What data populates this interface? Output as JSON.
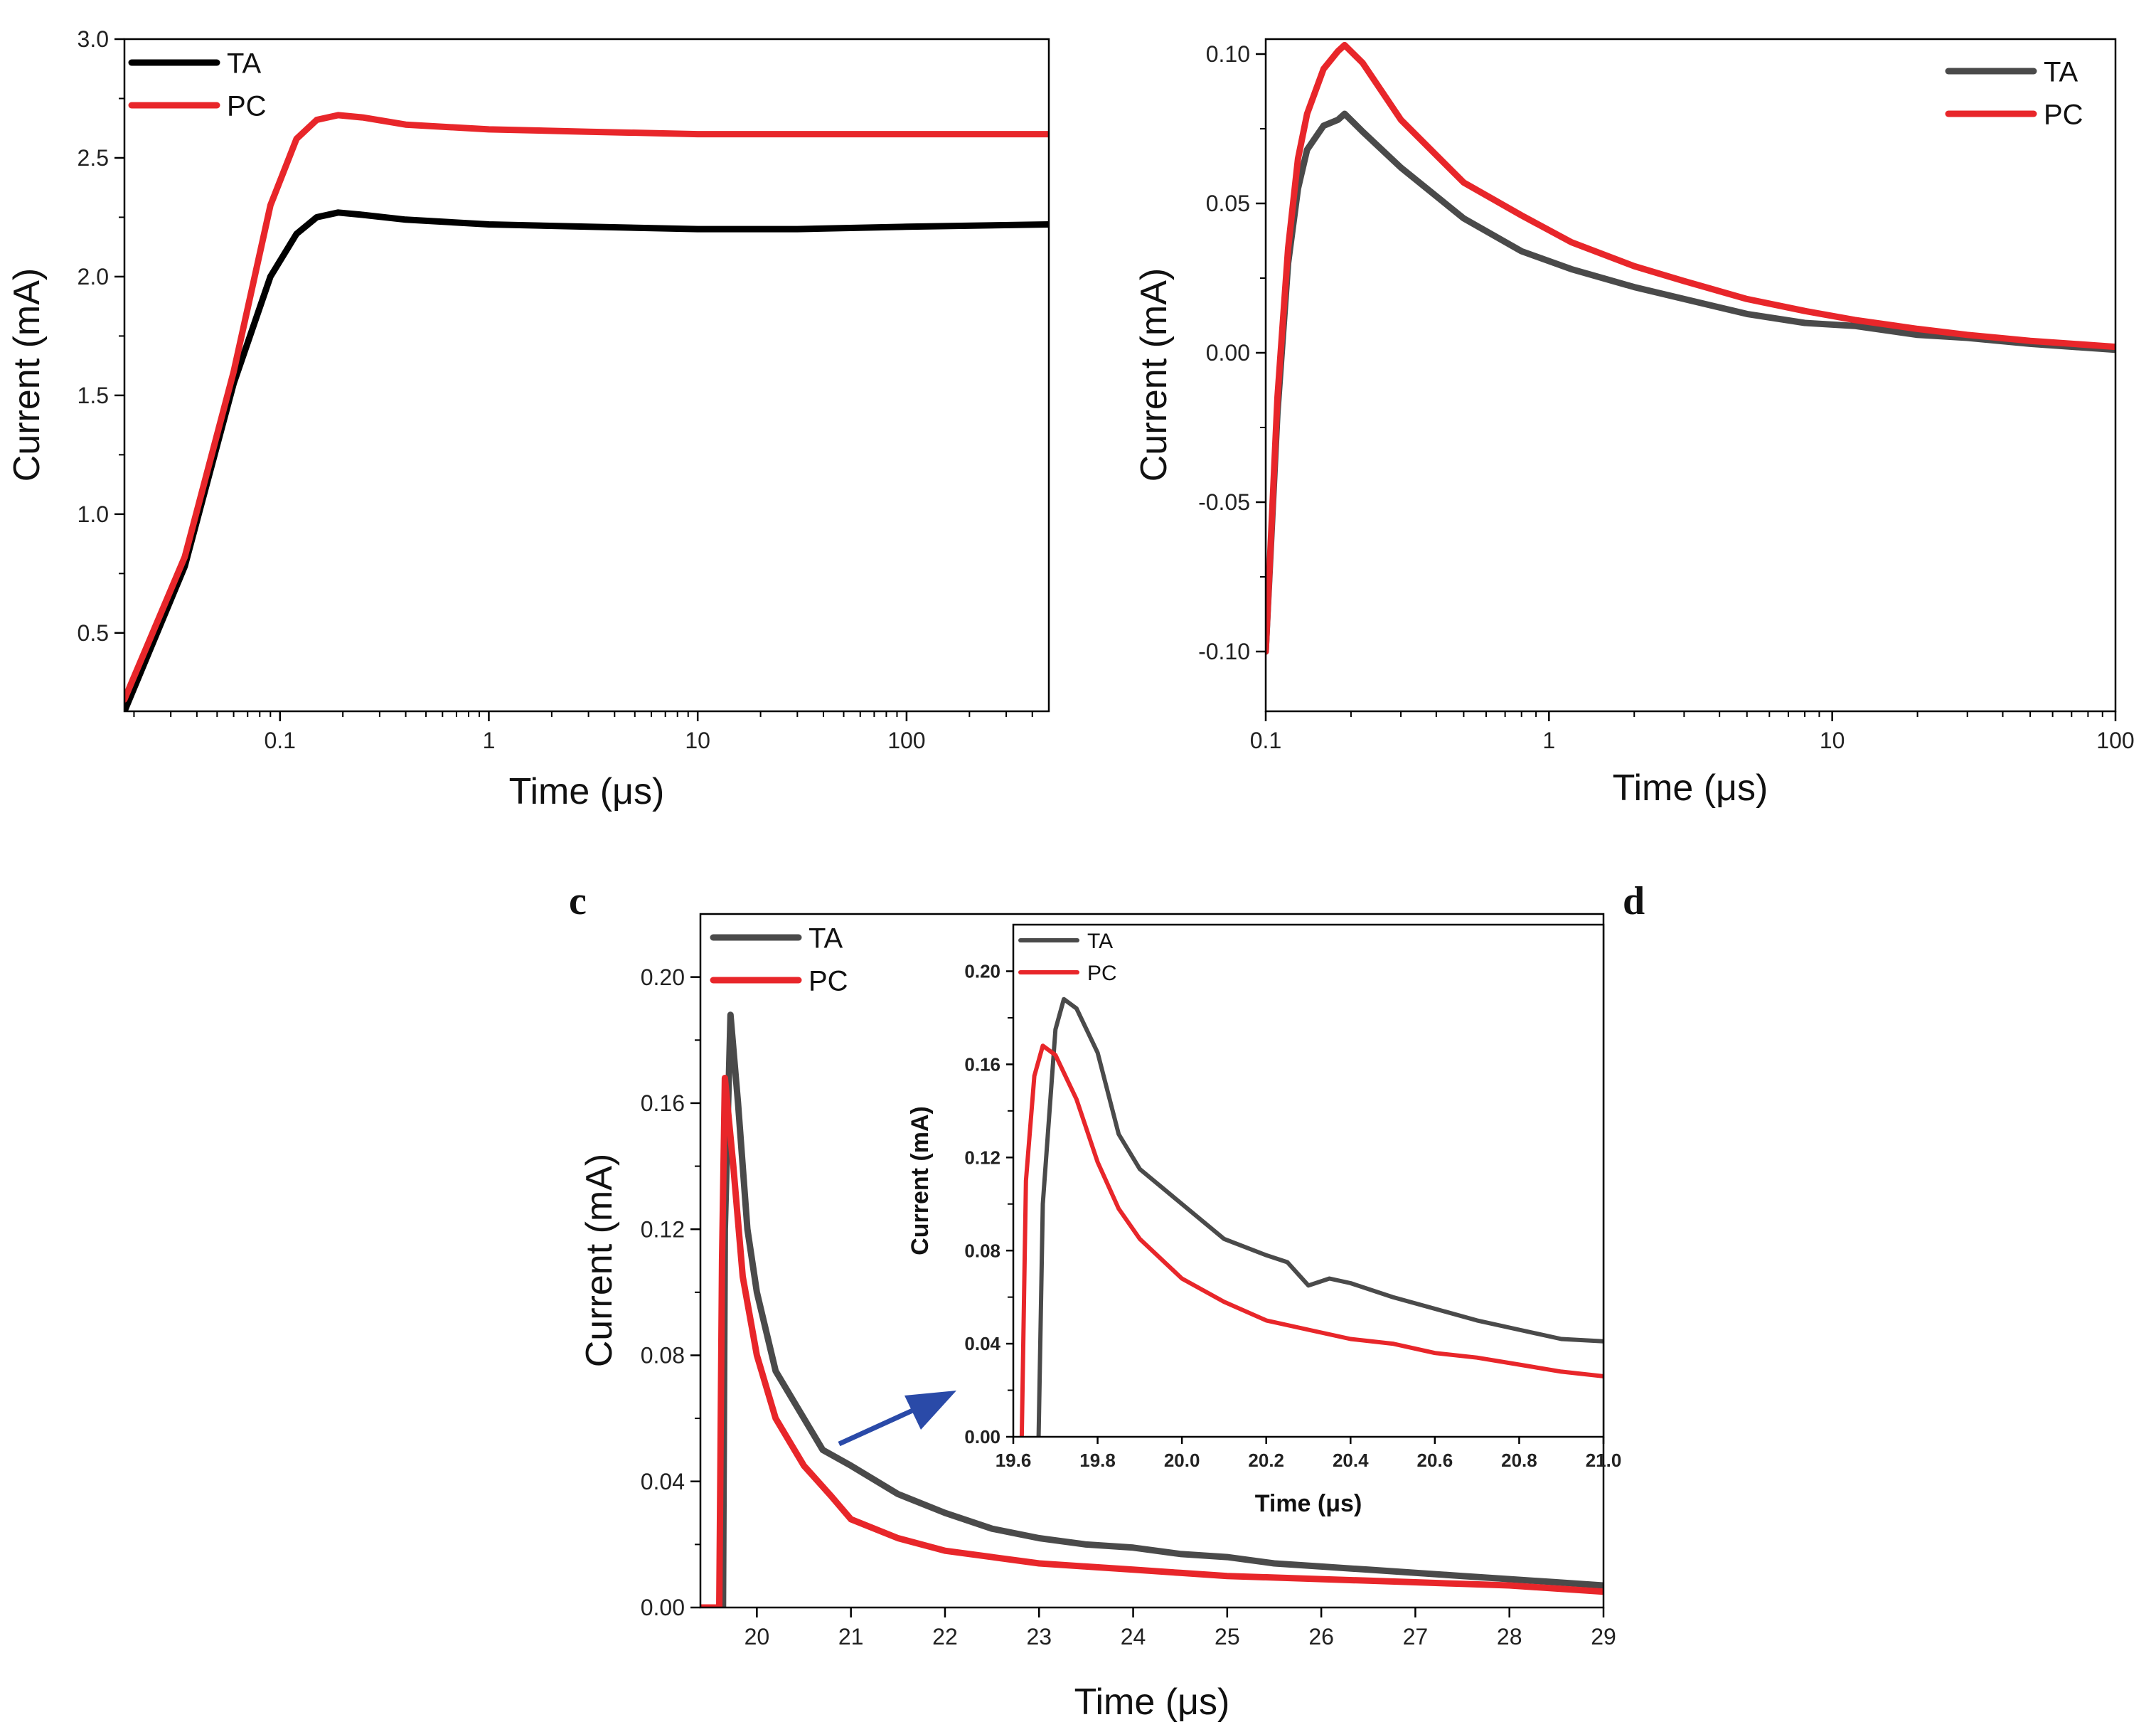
{
  "colors": {
    "ta_a": "#000000",
    "ta": "#4a4a4a",
    "pc": "#e8262a",
    "arrow": "#2a4aa8"
  },
  "panel_labels": {
    "c": "c",
    "d": "d"
  },
  "chart_data": [
    {
      "id": "top-left",
      "type": "line",
      "xscale": "log",
      "xlim": [
        0.018,
        480
      ],
      "ylim": [
        0.17,
        3.0
      ],
      "xlabel": "Time (μs)",
      "ylabel": "Current (mA)",
      "x_ticks": [
        {
          "v": 0.1,
          "label": "0.1"
        },
        {
          "v": 1,
          "label": "1"
        },
        {
          "v": 10,
          "label": "10"
        },
        {
          "v": 100,
          "label": "100"
        }
      ],
      "y_ticks": [
        {
          "v": 0.5,
          "label": "0.5"
        },
        {
          "v": 1.0,
          "label": "1.0"
        },
        {
          "v": 1.5,
          "label": "1.5"
        },
        {
          "v": 2.0,
          "label": "2.0"
        },
        {
          "v": 2.5,
          "label": "2.5"
        },
        {
          "v": 3.0,
          "label": "3.0"
        }
      ],
      "legend": "top-left",
      "series": [
        {
          "name": "TA",
          "color_key": "ta_a",
          "x": [
            0.018,
            0.035,
            0.06,
            0.09,
            0.12,
            0.15,
            0.19,
            0.25,
            0.4,
            1,
            3,
            10,
            30,
            100,
            480
          ],
          "y": [
            0.17,
            0.78,
            1.55,
            2.0,
            2.18,
            2.25,
            2.27,
            2.26,
            2.24,
            2.22,
            2.21,
            2.2,
            2.2,
            2.21,
            2.22
          ]
        },
        {
          "name": "PC",
          "color_key": "pc",
          "x": [
            0.018,
            0.035,
            0.06,
            0.09,
            0.12,
            0.15,
            0.19,
            0.25,
            0.4,
            1,
            3,
            10,
            30,
            100,
            480
          ],
          "y": [
            0.22,
            0.82,
            1.6,
            2.3,
            2.58,
            2.66,
            2.68,
            2.67,
            2.64,
            2.62,
            2.61,
            2.6,
            2.6,
            2.6,
            2.6
          ]
        }
      ]
    },
    {
      "id": "top-right",
      "type": "line",
      "xscale": "log",
      "xlim": [
        0.1,
        100
      ],
      "ylim": [
        -0.12,
        0.105
      ],
      "xlabel": "Time (μs)",
      "ylabel": "Current  (mA)",
      "x_ticks": [
        {
          "v": 0.1,
          "label": "0.1"
        },
        {
          "v": 1,
          "label": "1"
        },
        {
          "v": 10,
          "label": "10"
        },
        {
          "v": 100,
          "label": "100"
        }
      ],
      "y_ticks": [
        {
          "v": -0.1,
          "label": "-0.10"
        },
        {
          "v": -0.05,
          "label": "-0.05"
        },
        {
          "v": 0.0,
          "label": "0.00"
        },
        {
          "v": 0.05,
          "label": "0.05"
        },
        {
          "v": 0.1,
          "label": "0.10"
        }
      ],
      "legend": "top-right",
      "series": [
        {
          "name": "TA",
          "color_key": "ta",
          "x": [
            0.1,
            0.11,
            0.12,
            0.13,
            0.14,
            0.16,
            0.18,
            0.19,
            0.22,
            0.3,
            0.5,
            0.8,
            1.2,
            2,
            3,
            5,
            8,
            12,
            20,
            30,
            50,
            100
          ],
          "y": [
            -0.1,
            -0.02,
            0.03,
            0.055,
            0.068,
            0.076,
            0.078,
            0.08,
            0.074,
            0.062,
            0.045,
            0.034,
            0.028,
            0.022,
            0.018,
            0.013,
            0.01,
            0.009,
            0.006,
            0.005,
            0.003,
            0.001
          ]
        },
        {
          "name": "PC",
          "color_key": "pc",
          "x": [
            0.1,
            0.11,
            0.12,
            0.13,
            0.14,
            0.16,
            0.18,
            0.19,
            0.22,
            0.3,
            0.5,
            0.8,
            1.2,
            2,
            3,
            5,
            8,
            12,
            20,
            30,
            50,
            100
          ],
          "y": [
            -0.1,
            -0.015,
            0.035,
            0.065,
            0.08,
            0.095,
            0.101,
            0.103,
            0.097,
            0.078,
            0.057,
            0.046,
            0.037,
            0.029,
            0.024,
            0.018,
            0.014,
            0.011,
            0.008,
            0.006,
            0.004,
            0.002
          ]
        }
      ]
    },
    {
      "id": "bottom",
      "type": "line",
      "xscale": "linear",
      "xlim": [
        19.4,
        29
      ],
      "ylim": [
        0.0,
        0.22
      ],
      "xlabel": "Time (μs)",
      "ylabel": "Current (mA)",
      "x_ticks": [
        {
          "v": 20,
          "label": "20"
        },
        {
          "v": 21,
          "label": "21"
        },
        {
          "v": 22,
          "label": "22"
        },
        {
          "v": 23,
          "label": "23"
        },
        {
          "v": 24,
          "label": "24"
        },
        {
          "v": 25,
          "label": "25"
        },
        {
          "v": 26,
          "label": "26"
        },
        {
          "v": 27,
          "label": "27"
        },
        {
          "v": 28,
          "label": "28"
        },
        {
          "v": 29,
          "label": "29"
        }
      ],
      "y_ticks": [
        {
          "v": 0.0,
          "label": "0.00"
        },
        {
          "v": 0.04,
          "label": "0.04"
        },
        {
          "v": 0.08,
          "label": "0.08"
        },
        {
          "v": 0.12,
          "label": "0.12"
        },
        {
          "v": 0.16,
          "label": "0.16"
        },
        {
          "v": 0.2,
          "label": "0.20"
        }
      ],
      "legend": "top-left",
      "series": [
        {
          "name": "TA",
          "color_key": "ta",
          "x": [
            19.4,
            19.64,
            19.66,
            19.72,
            19.8,
            19.9,
            20.0,
            20.2,
            20.4,
            20.7,
            21.0,
            21.5,
            22.0,
            22.5,
            23.0,
            23.5,
            24.0,
            24.5,
            25.0,
            25.5,
            26.0,
            26.5,
            27.0,
            27.5,
            28.0,
            28.5,
            29.0
          ],
          "y": [
            0.0,
            0.0,
            0.12,
            0.188,
            0.16,
            0.12,
            0.1,
            0.075,
            0.065,
            0.05,
            0.045,
            0.036,
            0.03,
            0.025,
            0.022,
            0.02,
            0.019,
            0.017,
            0.016,
            0.014,
            0.013,
            0.012,
            0.011,
            0.01,
            0.009,
            0.008,
            0.007
          ]
        },
        {
          "name": "PC",
          "color_key": "pc",
          "x": [
            19.4,
            19.6,
            19.63,
            19.66,
            19.75,
            19.85,
            20.0,
            20.2,
            20.5,
            20.8,
            21.0,
            21.5,
            22.0,
            22.5,
            23.0,
            23.5,
            24.0,
            24.5,
            25.0,
            25.5,
            26.0,
            26.5,
            27.0,
            27.5,
            28.0,
            28.5,
            29.0
          ],
          "y": [
            0.0,
            0.0,
            0.11,
            0.168,
            0.14,
            0.105,
            0.08,
            0.06,
            0.045,
            0.035,
            0.028,
            0.022,
            0.018,
            0.016,
            0.014,
            0.013,
            0.012,
            0.011,
            0.01,
            0.0095,
            0.009,
            0.0085,
            0.008,
            0.0075,
            0.007,
            0.006,
            0.005
          ]
        }
      ]
    },
    {
      "id": "inset",
      "type": "line",
      "xscale": "linear",
      "xlim": [
        19.6,
        21.0
      ],
      "ylim": [
        0.0,
        0.22
      ],
      "xlabel": "Time (μs)",
      "ylabel": "Current (mA)",
      "x_ticks": [
        {
          "v": 19.6,
          "label": "19.6"
        },
        {
          "v": 19.8,
          "label": "19.8"
        },
        {
          "v": 20.0,
          "label": "20.0"
        },
        {
          "v": 20.2,
          "label": "20.2"
        },
        {
          "v": 20.4,
          "label": "20.4"
        },
        {
          "v": 20.6,
          "label": "20.6"
        },
        {
          "v": 20.8,
          "label": "20.8"
        },
        {
          "v": 21.0,
          "label": "21.0"
        }
      ],
      "y_ticks": [
        {
          "v": 0.0,
          "label": "0.00"
        },
        {
          "v": 0.04,
          "label": "0.04"
        },
        {
          "v": 0.08,
          "label": "0.08"
        },
        {
          "v": 0.12,
          "label": "0.12"
        },
        {
          "v": 0.16,
          "label": "0.16"
        },
        {
          "v": 0.2,
          "label": "0.20"
        }
      ],
      "legend": "top-left",
      "series": [
        {
          "name": "TA",
          "color_key": "ta",
          "x": [
            19.66,
            19.67,
            19.7,
            19.72,
            19.75,
            19.8,
            19.85,
            19.9,
            20.0,
            20.1,
            20.2,
            20.25,
            20.3,
            20.35,
            20.4,
            20.5,
            20.6,
            20.7,
            20.8,
            20.9,
            21.0
          ],
          "y": [
            0.0,
            0.1,
            0.175,
            0.188,
            0.184,
            0.165,
            0.13,
            0.115,
            0.1,
            0.085,
            0.078,
            0.075,
            0.065,
            0.068,
            0.066,
            0.06,
            0.055,
            0.05,
            0.046,
            0.042,
            0.041
          ]
        },
        {
          "name": "PC",
          "color_key": "pc",
          "x": [
            19.62,
            19.63,
            19.65,
            19.67,
            19.7,
            19.75,
            19.8,
            19.85,
            19.9,
            20.0,
            20.1,
            20.2,
            20.3,
            20.4,
            20.5,
            20.6,
            20.7,
            20.8,
            20.9,
            21.0
          ],
          "y": [
            0.0,
            0.11,
            0.155,
            0.168,
            0.164,
            0.145,
            0.118,
            0.098,
            0.085,
            0.068,
            0.058,
            0.05,
            0.046,
            0.042,
            0.04,
            0.036,
            0.034,
            0.031,
            0.028,
            0.026
          ]
        }
      ]
    }
  ]
}
